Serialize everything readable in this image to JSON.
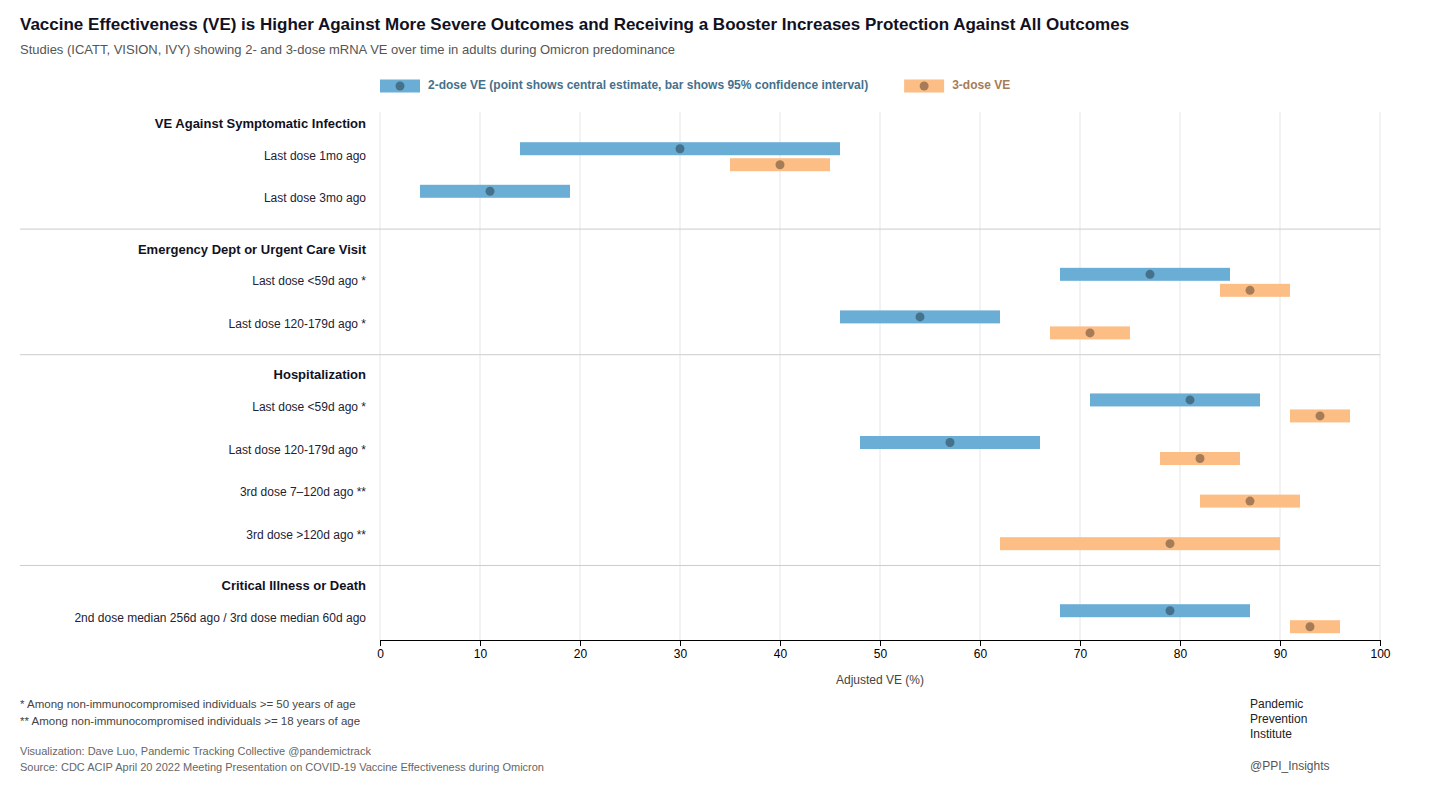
{
  "chart_data": {
    "type": "interval",
    "orientation": "horizontal",
    "title": "Vaccine Effectiveness (VE) is Higher Against More Severe Outcomes and Receiving a Booster Increases Protection Against All Outcomes",
    "subtitle": "Studies (ICATT, VISION, IVY) showing 2- and 3-dose mRNA VE over time in adults during Omicron predominance",
    "xlabel": "Adjusted VE (%)",
    "xlim": [
      0,
      100
    ],
    "xticks": [
      0,
      10,
      20,
      30,
      40,
      50,
      60,
      70,
      80,
      90,
      100
    ],
    "grid": true,
    "legend": "top",
    "categories": [
      "Last dose 1mo ago",
      "Last dose 3mo ago",
      "Last dose <59d ago *",
      "Last dose 120-179d ago *",
      "Last dose <59d ago *",
      "Last dose 120-179d ago *",
      "3rd dose 7–120d ago **",
      "3rd dose >120d ago **",
      "2nd dose median 256d ago / 3rd dose median 60d ago"
    ],
    "groups": [
      "VE Against Symptomatic Infection",
      "VE Against Symptomatic Infection",
      "Emergency Dept or Urgent Care Visit",
      "Emergency Dept or Urgent Care Visit",
      "Hospitalization",
      "Hospitalization",
      "Hospitalization",
      "Hospitalization",
      "Critical Illness or Death"
    ],
    "series": [
      {
        "name": "2-dose VE (point shows central estimate, bar shows 95% confidence interval)",
        "color": "#6aaed6",
        "values": [
          30,
          11,
          77,
          54,
          81,
          57,
          null,
          null,
          79
        ],
        "lo": [
          14,
          4,
          68,
          46,
          71,
          48,
          null,
          null,
          68
        ],
        "hi": [
          46,
          19,
          85,
          62,
          88,
          66,
          null,
          null,
          87
        ]
      },
      {
        "name": "3-dose VE",
        "color": "#fdbe85",
        "values": [
          40,
          null,
          87,
          71,
          94,
          82,
          87,
          79,
          93
        ],
        "lo": [
          35,
          null,
          84,
          67,
          91,
          78,
          82,
          62,
          91
        ],
        "hi": [
          45,
          null,
          91,
          75,
          97,
          86,
          92,
          90,
          96
        ]
      }
    ],
    "footnotes": [
      "*  Among non-immunocompromised individuals >= 50 years of age",
      "** Among non-immunocompromised individuals >= 18 years of age"
    ],
    "sources": [
      "Visualization: Dave Luo, Pandemic Tracking Collective @pandemictrack",
      "Source: CDC ACIP April 20 2022 Meeting Presentation on COVID-19 Vaccine Effectiveness during Omicron"
    ],
    "credits": [
      "Pandemic",
      "Prevention",
      "Institute",
      "@PPI_Insights"
    ]
  }
}
